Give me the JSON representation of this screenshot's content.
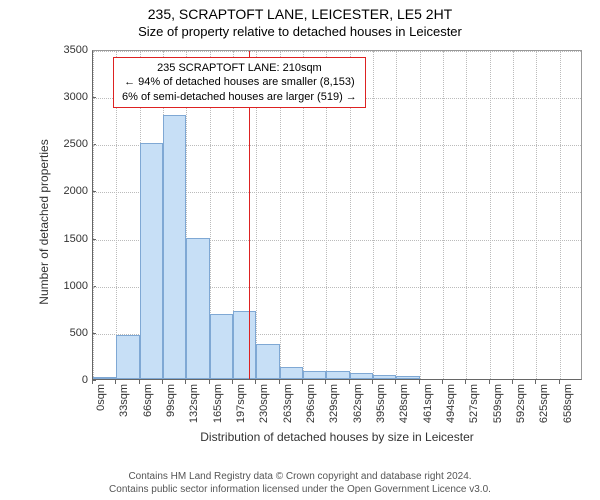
{
  "title_main": "235, SCRAPTOFT LANE, LEICESTER, LE5 2HT",
  "title_sub": "Size of property relative to detached houses in Leicester",
  "chart": {
    "type": "bar",
    "ylabel": "Number of detached properties",
    "xlabel": "Distribution of detached houses by size in Leicester",
    "ylim": [
      0,
      3500
    ],
    "ytick_step": 500,
    "x_categories": [
      "0sqm",
      "33sqm",
      "66sqm",
      "99sqm",
      "132sqm",
      "165sqm",
      "197sqm",
      "230sqm",
      "263sqm",
      "296sqm",
      "329sqm",
      "362sqm",
      "395sqm",
      "428sqm",
      "461sqm",
      "494sqm",
      "527sqm",
      "559sqm",
      "592sqm",
      "625sqm",
      "658sqm"
    ],
    "values": [
      20,
      470,
      2500,
      2800,
      1500,
      690,
      720,
      370,
      130,
      90,
      80,
      60,
      40,
      30,
      0,
      0,
      0,
      0,
      0,
      0,
      0
    ],
    "bar_fill": "#c7dff6",
    "bar_border": "#7fa8d4",
    "grid_color": "#bbbbbb",
    "background": "#ffffff",
    "axis_color": "#666666",
    "reference": {
      "value_sqm": 210,
      "line_color": "#dd2222",
      "box_lines": [
        "235 SCRAPTOFT LANE: 210sqm",
        "← 94% of detached houses are smaller (8,153)",
        "6% of semi-detached houses are larger (519) →"
      ]
    }
  },
  "footer": {
    "line1": "Contains HM Land Registry data © Crown copyright and database right 2024.",
    "line2": "Contains public sector information licensed under the Open Government Licence v3.0."
  }
}
